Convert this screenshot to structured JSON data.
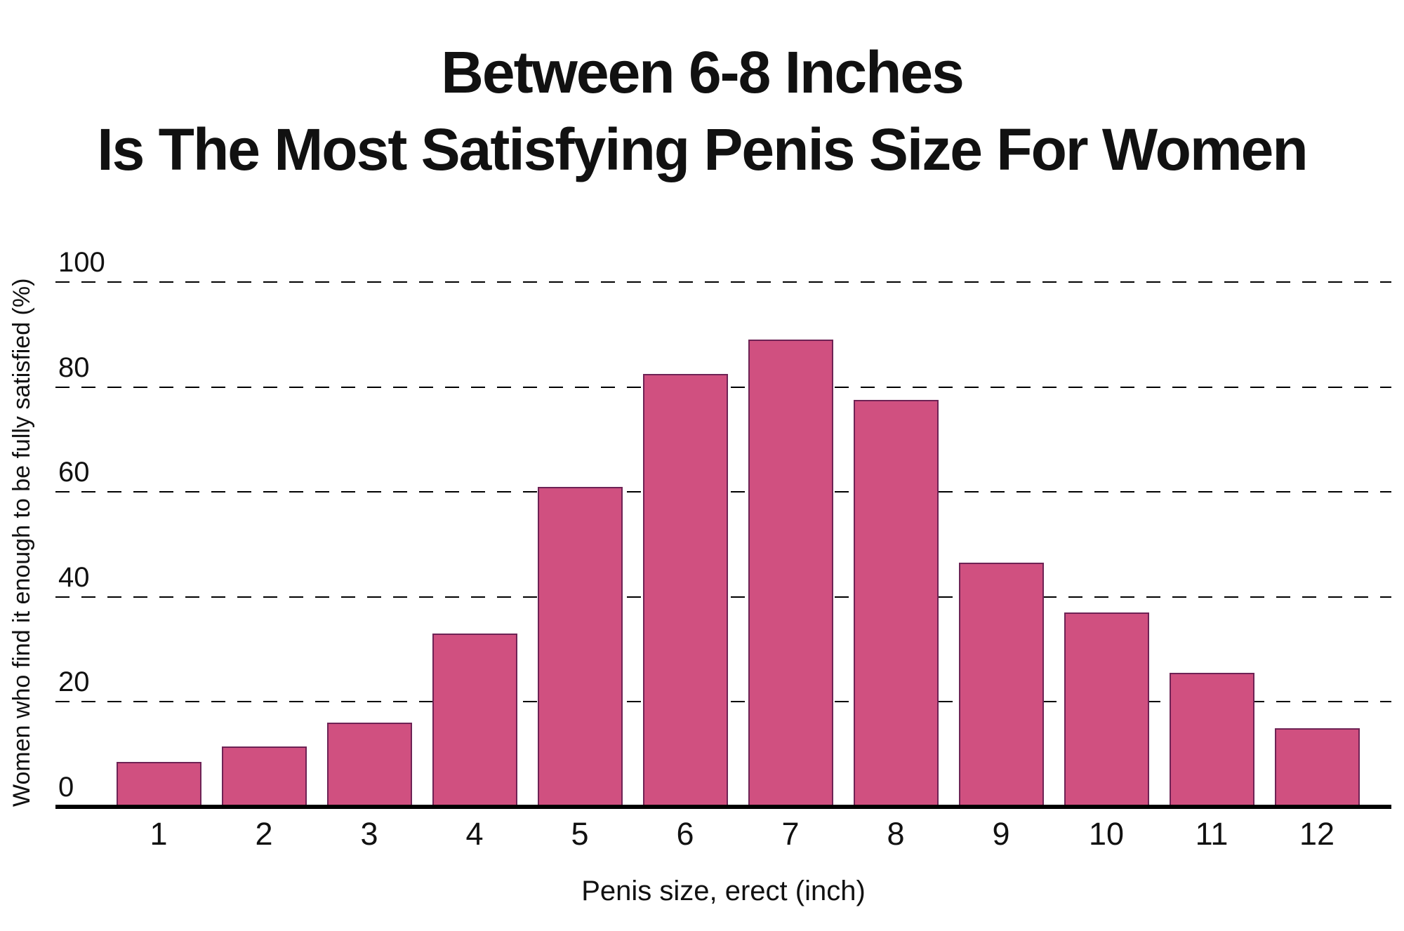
{
  "chart_data": {
    "type": "bar",
    "title_line1": "Between 6-8 Inches",
    "title_line2": "Is The Most Satisfying Penis Size For Women",
    "xlabel": "Penis size, erect (inch)",
    "ylabel": "Women who find it enough to be fully satisfied (%)",
    "categories": [
      "1",
      "2",
      "3",
      "4",
      "5",
      "6",
      "7",
      "8",
      "9",
      "10",
      "11",
      "12"
    ],
    "values": [
      8.5,
      11.5,
      16,
      33,
      61,
      82.5,
      89,
      77.5,
      46.5,
      37,
      25.5,
      15
    ],
    "yticks": [
      0,
      20,
      40,
      60,
      80,
      100
    ],
    "ylim": [
      0,
      100
    ],
    "grid": "horizontal-dashed",
    "legend": "none",
    "bar_color": "#d05080",
    "bar_border_color": "#6e2355",
    "axis_color": "#000000"
  }
}
